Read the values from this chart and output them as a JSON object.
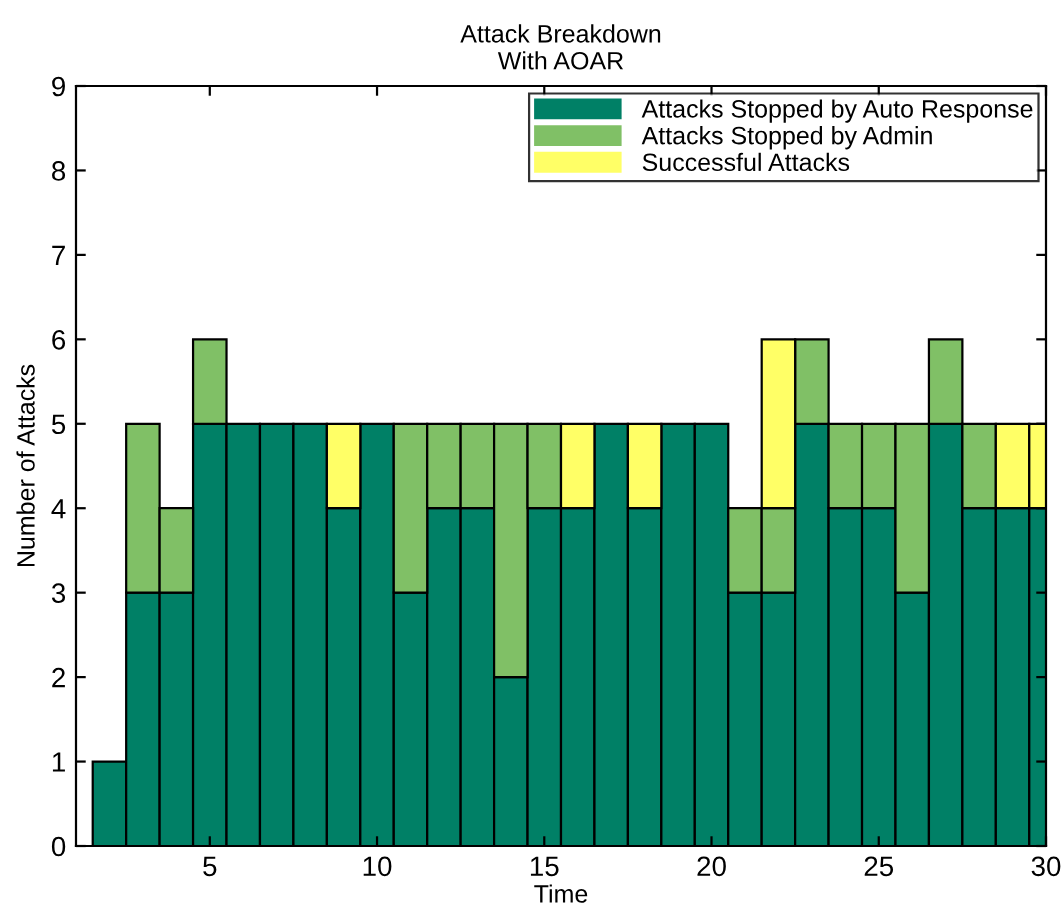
{
  "chart_data": {
    "type": "bar",
    "stacked": true,
    "title": "Attack Breakdown\nWith AOAR",
    "xlabel": "Time",
    "ylabel": "Number of Attacks",
    "x": [
      1,
      2,
      3,
      4,
      5,
      6,
      7,
      8,
      9,
      10,
      11,
      12,
      13,
      14,
      15,
      16,
      17,
      18,
      19,
      20,
      21,
      22,
      23,
      24,
      25,
      26,
      27,
      28,
      29,
      30
    ],
    "series": [
      {
        "name": "Attacks Stopped by Auto Response",
        "color": "#008066",
        "values": [
          0,
          1,
          3,
          3,
          5,
          5,
          5,
          5,
          4,
          5,
          3,
          4,
          4,
          2,
          4,
          4,
          5,
          4,
          5,
          5,
          3,
          3,
          5,
          4,
          4,
          3,
          5,
          4,
          4,
          4
        ]
      },
      {
        "name": "Attacks Stopped by Admin",
        "color": "#80c066",
        "values": [
          0,
          0,
          2,
          1,
          1,
          0,
          0,
          0,
          0,
          0,
          2,
          1,
          1,
          3,
          1,
          0,
          0,
          0,
          0,
          0,
          1,
          1,
          1,
          1,
          1,
          2,
          1,
          1,
          0,
          0
        ]
      },
      {
        "name": "Successful Attacks",
        "color": "#ffff66",
        "values": [
          0,
          0,
          0,
          0,
          0,
          0,
          0,
          0,
          1,
          0,
          0,
          0,
          0,
          0,
          0,
          1,
          0,
          1,
          0,
          0,
          0,
          2,
          0,
          0,
          0,
          0,
          0,
          0,
          1,
          1
        ]
      }
    ],
    "xlim": [
      1,
      30
    ],
    "xticks": [
      5,
      10,
      15,
      20,
      25,
      30
    ],
    "ylim": [
      0,
      9
    ],
    "yticks": [
      0,
      1,
      2,
      3,
      4,
      5,
      6,
      7,
      8,
      9
    ],
    "grid": false,
    "legend": "top right"
  }
}
